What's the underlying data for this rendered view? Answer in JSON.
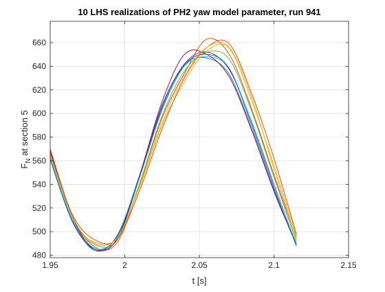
{
  "figure": {
    "title": "10 LHS realizations of PH2 yaw model parameter, run 941",
    "xlabel": "t [s]",
    "ylabel_main": "F",
    "ylabel_sub": "N",
    "ylabel_rest": " at section 5"
  },
  "chart_data": {
    "type": "line",
    "title": "10 LHS realizations of PH2 yaw model parameter, run 941",
    "xlabel": "t [s]",
    "ylabel": "F_N at section 5",
    "xlim": [
      1.95,
      2.15
    ],
    "ylim": [
      478,
      678
    ],
    "xticks": [
      1.95,
      2.0,
      2.05,
      2.1,
      2.15
    ],
    "xtick_labels": [
      "1.95",
      "2",
      "2.05",
      "2.1",
      "2.15"
    ],
    "yticks": [
      480,
      500,
      520,
      540,
      560,
      580,
      600,
      620,
      640,
      660
    ],
    "ytick_labels": [
      "480",
      "500",
      "520",
      "540",
      "560",
      "580",
      "600",
      "620",
      "640",
      "660"
    ],
    "grid": true,
    "legend": "none",
    "series": [
      {
        "color": "#0072BD",
        "x": [
          1.95,
          1.965,
          1.98,
          1.995,
          2.01,
          2.025,
          2.04,
          2.055,
          2.07,
          2.085,
          2.1,
          2.115
        ],
        "y": [
          565,
          510,
          484,
          497,
          548,
          607,
          641,
          647,
          633,
          587,
          535,
          490
        ]
      },
      {
        "color": "#D95319",
        "x": [
          1.95,
          1.965,
          1.98,
          1.995,
          2.01,
          2.025,
          2.04,
          2.055,
          2.07,
          2.085,
          2.1,
          2.115
        ],
        "y": [
          570,
          513,
          487,
          491,
          540,
          596,
          634,
          663,
          650,
          604,
          548,
          495
        ]
      },
      {
        "color": "#EDB120",
        "x": [
          1.95,
          1.965,
          1.98,
          1.995,
          2.01,
          2.025,
          2.04,
          2.055,
          2.07,
          2.085,
          2.1,
          2.115
        ],
        "y": [
          562,
          509,
          491,
          495,
          538,
          590,
          627,
          653,
          655,
          611,
          556,
          496
        ]
      },
      {
        "color": "#7E2F8E",
        "x": [
          1.95,
          1.965,
          1.98,
          1.995,
          2.01,
          2.025,
          2.04,
          2.055,
          2.07,
          2.085,
          2.1,
          2.115
        ],
        "y": [
          566,
          509,
          485,
          494,
          546,
          606,
          642,
          652,
          637,
          593,
          540,
          489
        ]
      },
      {
        "color": "#77AC30",
        "x": [
          1.95,
          1.965,
          1.98,
          1.995,
          2.01,
          2.025,
          2.04,
          2.055,
          2.07,
          2.085,
          2.1,
          2.115
        ],
        "y": [
          563,
          510,
          489,
          493,
          541,
          598,
          636,
          652,
          646,
          602,
          546,
          492
        ]
      },
      {
        "color": "#4DBEEE",
        "x": [
          1.95,
          1.965,
          1.98,
          1.995,
          2.01,
          2.025,
          2.04,
          2.055,
          2.07,
          2.085,
          2.1,
          2.115
        ],
        "y": [
          564,
          510,
          486,
          496,
          546,
          603,
          640,
          648,
          638,
          592,
          539,
          490
        ]
      },
      {
        "color": "#A2142F",
        "x": [
          1.95,
          1.965,
          1.98,
          1.995,
          2.01,
          2.025,
          2.04,
          2.055,
          2.07,
          2.085,
          2.1,
          2.115
        ],
        "y": [
          569,
          512,
          485,
          494,
          548,
          610,
          650,
          650,
          631,
          586,
          534,
          489
        ]
      },
      {
        "color": "#0072BD",
        "x": [
          1.95,
          1.965,
          1.98,
          1.995,
          2.01,
          2.025,
          2.04,
          2.055,
          2.07,
          2.085,
          2.1,
          2.115
        ],
        "y": [
          561,
          508,
          485,
          496,
          547,
          604,
          641,
          650,
          638,
          590,
          537,
          488
        ]
      },
      {
        "color": "#D95319",
        "x": [
          1.95,
          1.965,
          1.98,
          1.995,
          2.01,
          2.025,
          2.04,
          2.055,
          2.07,
          2.085,
          2.1,
          2.115
        ],
        "y": [
          567,
          514,
          493,
          494,
          535,
          587,
          630,
          656,
          659,
          617,
          562,
          498
        ]
      },
      {
        "color": "#EDB120",
        "x": [
          1.95,
          1.965,
          1.98,
          1.995,
          2.01,
          2.025,
          2.04,
          2.055,
          2.07,
          2.085,
          2.1,
          2.115
        ],
        "y": [
          565,
          512,
          490,
          495,
          539,
          592,
          632,
          656,
          656,
          614,
          553,
          494
        ]
      }
    ]
  }
}
